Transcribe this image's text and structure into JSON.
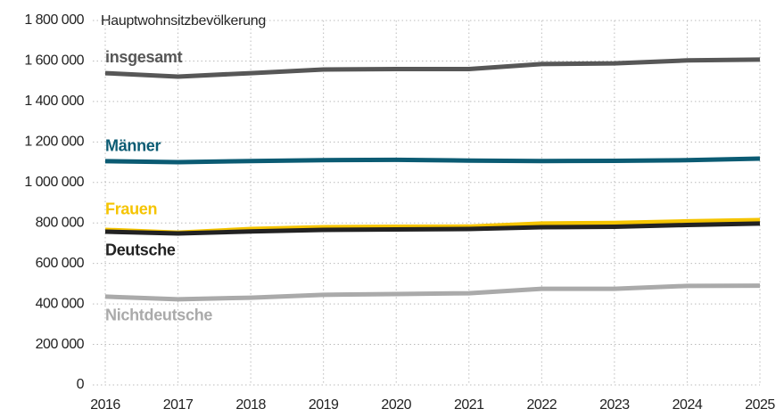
{
  "chart_data": {
    "type": "line",
    "title": "Hauptwohnsitzbevölkerung",
    "x": [
      2016,
      2017,
      2018,
      2019,
      2020,
      2021,
      2022,
      2023,
      2024,
      2025
    ],
    "xlim": [
      2016,
      2025
    ],
    "xticks": [
      2016,
      2017,
      2018,
      2019,
      2020,
      2021,
      2022,
      2023,
      2024,
      2025
    ],
    "ylim": [
      0,
      1800000
    ],
    "yticks": [
      0,
      {
        "value": 200000,
        "label": "200 000"
      },
      {
        "value": 400000,
        "label": "400 000"
      },
      {
        "value": 600000,
        "label": "600 000"
      },
      {
        "value": 800000,
        "label": "800 000"
      },
      {
        "value": 1000000,
        "label": "1 000 000"
      },
      {
        "value": 1200000,
        "label": "1 200 000"
      },
      {
        "value": 1400000,
        "label": "1 400 000"
      },
      {
        "value": 1600000,
        "label": "1 600 000"
      },
      {
        "value": 1800000,
        "label": "1 800 000"
      }
    ],
    "grid": true,
    "series": [
      {
        "name": "insgesamt",
        "color": "#575757",
        "values": [
          1540000,
          1523000,
          1540000,
          1558000,
          1560000,
          1560000,
          1585000,
          1588000,
          1603000,
          1607000
        ]
      },
      {
        "name": "Männer",
        "color": "#0b5b73",
        "values": [
          1105000,
          1100000,
          1106000,
          1110000,
          1112000,
          1108000,
          1106000,
          1107000,
          1110000,
          1118000
        ]
      },
      {
        "name": "Frauen",
        "color": "#f5c400",
        "values": [
          766000,
          752000,
          770000,
          779000,
          781000,
          782000,
          797000,
          800000,
          808000,
          814000
        ]
      },
      {
        "name": "Deutsche",
        "color": "#222222",
        "values": [
          757000,
          748000,
          758000,
          766000,
          768000,
          770000,
          779000,
          781000,
          790000,
          797000
        ]
      },
      {
        "name": "Nichtdeutsche",
        "color": "#aaaaaa",
        "values": [
          436000,
          423000,
          431000,
          445000,
          449000,
          453000,
          475000,
          475000,
          489000,
          490000
        ]
      }
    ]
  }
}
